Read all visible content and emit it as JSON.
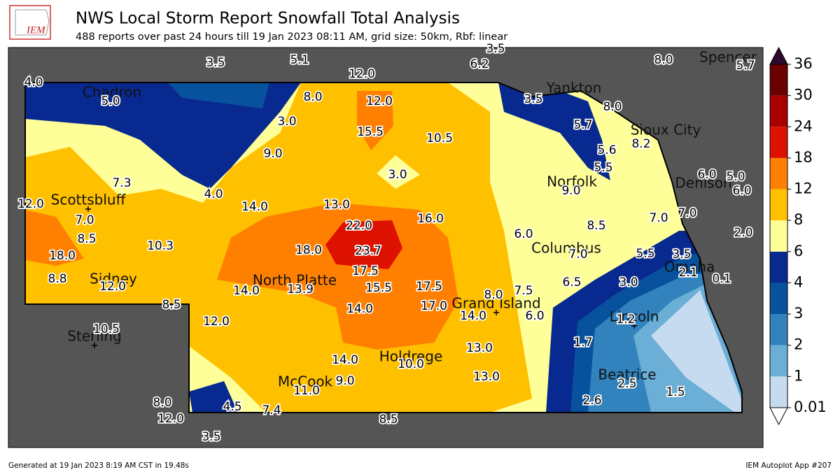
{
  "header": {
    "logo": "IEM",
    "title": "NWS Local Storm Report Snowfall Total Analysis",
    "subtitle": "488 reports over past 24 hours till 19 Jan 2023 08:11 AM, grid size: 50km, Rbf: linear"
  },
  "footer": {
    "left": "Generated at 19 Jan 2023 8:19 AM CST in 19.48s",
    "right": "IEM Autoplot App #207"
  },
  "cities": [
    "Spencer",
    "Yankton",
    "Chadron",
    "Sioux City",
    "Norfolk",
    "Denison",
    "Scottsbluff",
    "Columbus",
    "Omaha",
    "North Platte",
    "Sidney",
    "Grand Island",
    "Lincoln",
    "Sterling",
    "Holdrege",
    "Beatrice",
    "McCook"
  ],
  "reports": [
    "3.5",
    "5.1",
    "3.5",
    "6.2",
    "8.0",
    "5.7",
    "4.0",
    "12.0",
    "5.0",
    "8.0",
    "12.0",
    "3.5",
    "8.0",
    "3.0",
    "15.5",
    "5.7",
    "8.2",
    "10.5",
    "9.0",
    "5.6",
    "5.5",
    "3.0",
    "7.3",
    "9.0",
    "6.0",
    "5.0",
    "6.0",
    "4.0",
    "12.0",
    "14.0",
    "13.0",
    "7.0",
    "7.0",
    "7.0",
    "16.0",
    "22.0",
    "8.5",
    "2.0",
    "6.0",
    "8.5",
    "10.3",
    "18.0",
    "23.7",
    "7.0",
    "5.5",
    "3.5",
    "18.0",
    "17.5",
    "2.1",
    "0.1",
    "8.8",
    "6.5",
    "3.0",
    "12.0",
    "14.0",
    "13.9",
    "15.5",
    "17.5",
    "8.0",
    "7.5",
    "8.5",
    "17.0",
    "14.0",
    "14.0",
    "6.0",
    "1.2",
    "12.0",
    "10.5",
    "1.7",
    "13.0",
    "14.0",
    "10.0",
    "13.0",
    "9.0",
    "11.0",
    "2.5",
    "1.5",
    "4.5",
    "7.4",
    "8.0",
    "2.6",
    "8.5",
    "12.0",
    "3.5"
  ],
  "legend": {
    "levels": [
      0.01,
      1,
      2,
      3,
      4,
      6,
      8,
      12,
      18,
      24,
      30,
      36
    ],
    "colors": [
      "#c6dbef",
      "#6baed6",
      "#3182bd",
      "#08519c",
      "#08298f",
      "#ffff99",
      "#ffc000",
      "#ff8000",
      "#dd1100",
      "#aa0000",
      "#6b0000"
    ],
    "over_color": "#2d0a2d",
    "under_color": "#ffffff"
  }
}
